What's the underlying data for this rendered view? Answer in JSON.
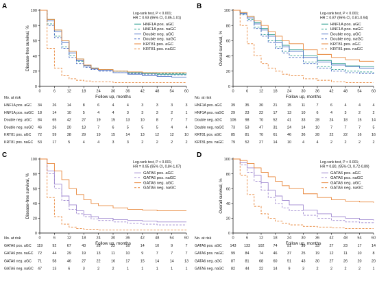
{
  "chart_data": [
    {
      "panel": "A",
      "type": "line",
      "ylabel": "Disease-free survival, %",
      "xlabel": "Follow up, months",
      "ylim": [
        0,
        100
      ],
      "xlim": [
        0,
        60
      ],
      "xticks": [
        0,
        6,
        12,
        18,
        24,
        30,
        36,
        42,
        48,
        54,
        60
      ],
      "yticks": [
        0,
        20,
        40,
        60,
        80,
        100
      ],
      "annotation": [
        "Log-rank test, P < 0.001;",
        "HR = 0.93 (95% CI, 0.85-1.01)"
      ],
      "legend": "top-right",
      "risk_title": "No. at risk",
      "series": [
        {
          "name": "HNF1A pos. aGC",
          "color": "#2e9e8f",
          "dash": "solid",
          "x": [
            0,
            3,
            6,
            9,
            12,
            15,
            18,
            21,
            24,
            30,
            36,
            42,
            48,
            54,
            60
          ],
          "y": [
            100,
            88,
            74,
            60,
            46,
            36,
            28,
            24,
            22,
            20,
            18,
            17,
            16,
            16,
            16
          ],
          "risk": [
            34,
            26,
            14,
            8,
            6,
            4,
            4,
            3,
            3,
            3,
            3
          ]
        },
        {
          "name": "HNF1A pos. naGC",
          "color": "#2e9e8f",
          "dash": "dash",
          "x": [
            0,
            3,
            6,
            9,
            12,
            15,
            18,
            21,
            24,
            30,
            36,
            42,
            48,
            54,
            60
          ],
          "y": [
            100,
            82,
            66,
            52,
            40,
            33,
            27,
            24,
            22,
            20,
            18,
            18,
            17,
            17,
            17
          ],
          "risk": [
            18,
            14,
            10,
            5,
            4,
            4,
            3,
            3,
            3,
            2,
            1
          ]
        },
        {
          "name": "Double neg. aGC",
          "color": "#4a6fc4",
          "dash": "solid",
          "x": [
            0,
            3,
            6,
            9,
            12,
            15,
            18,
            21,
            24,
            30,
            36,
            42,
            48,
            54,
            60
          ],
          "y": [
            100,
            86,
            72,
            58,
            44,
            34,
            27,
            23,
            21,
            18,
            16,
            14,
            13,
            12,
            12
          ],
          "risk": [
            84,
            65,
            42,
            27,
            19,
            15,
            13,
            10,
            8,
            7,
            7
          ]
        },
        {
          "name": "Double neg. naGC",
          "color": "#4a6fc4",
          "dash": "dash",
          "x": [
            0,
            3,
            6,
            9,
            12,
            15,
            18,
            21,
            24,
            30,
            36,
            42,
            48,
            54,
            60
          ],
          "y": [
            100,
            80,
            64,
            50,
            38,
            30,
            25,
            22,
            20,
            18,
            17,
            16,
            15,
            15,
            15
          ],
          "risk": [
            46,
            26,
            20,
            13,
            7,
            6,
            5,
            5,
            5,
            4,
            4
          ]
        },
        {
          "name": "KRT81 pos. aGC",
          "color": "#e8863a",
          "dash": "solid",
          "x": [
            0,
            3,
            6,
            9,
            12,
            15,
            18,
            21,
            24,
            30,
            36,
            42,
            48,
            54,
            60
          ],
          "y": [
            100,
            88,
            74,
            60,
            46,
            36,
            28,
            24,
            22,
            20,
            19,
            18,
            18,
            18,
            18
          ],
          "risk": [
            72,
            59,
            38,
            29,
            19,
            15,
            14,
            13,
            12,
            12,
            10
          ]
        },
        {
          "name": "KRT81 pos. naGC",
          "color": "#e8863a",
          "dash": "dash",
          "x": [
            0,
            3,
            6,
            9,
            12,
            15,
            18,
            21,
            24,
            30,
            36,
            42,
            48,
            54,
            60
          ],
          "y": [
            100,
            50,
            24,
            14,
            10,
            8,
            7,
            6,
            6,
            5,
            5,
            5,
            5,
            5,
            5
          ],
          "risk": [
            53,
            17,
            5,
            4,
            4,
            3,
            3,
            2,
            2,
            2,
            2
          ]
        }
      ]
    },
    {
      "panel": "B",
      "type": "line",
      "ylabel": "Overall survival, %",
      "xlabel": "Follow up, months",
      "ylim": [
        0,
        100
      ],
      "xlim": [
        0,
        60
      ],
      "xticks": [
        0,
        6,
        12,
        18,
        24,
        30,
        36,
        42,
        48,
        54,
        60
      ],
      "yticks": [
        0,
        20,
        40,
        60,
        80,
        100
      ],
      "annotation": [
        "Log-rank test, P < 0.001;",
        "HR = 0.87 (95% CI, 0.81-0.94)"
      ],
      "legend": "top-right",
      "risk_title": "No. at risk",
      "series": [
        {
          "name": "HNF1A pos. aGC",
          "color": "#2e9e8f",
          "dash": "solid",
          "x": [
            0,
            3,
            6,
            9,
            12,
            15,
            18,
            21,
            24,
            30,
            36,
            42,
            48,
            54,
            60
          ],
          "y": [
            100,
            97,
            92,
            84,
            76,
            68,
            60,
            54,
            48,
            40,
            34,
            30,
            27,
            26,
            25
          ],
          "risk": [
            39,
            35,
            30,
            21,
            15,
            11,
            7,
            6,
            4,
            4,
            4
          ]
        },
        {
          "name": "HNF1A pos. naGC",
          "color": "#2e9e8f",
          "dash": "dash",
          "x": [
            0,
            3,
            6,
            9,
            12,
            15,
            18,
            21,
            24,
            30,
            36,
            42,
            48,
            54,
            60
          ],
          "y": [
            100,
            95,
            88,
            78,
            68,
            60,
            52,
            46,
            40,
            32,
            26,
            22,
            20,
            19,
            18
          ],
          "risk": [
            29,
            23,
            22,
            17,
            13,
            10,
            6,
            4,
            3,
            2,
            2
          ]
        },
        {
          "name": "Double neg. aGC",
          "color": "#4a6fc4",
          "dash": "solid",
          "x": [
            0,
            3,
            6,
            9,
            12,
            15,
            18,
            21,
            24,
            30,
            36,
            42,
            48,
            54,
            60
          ],
          "y": [
            100,
            96,
            90,
            82,
            74,
            66,
            58,
            52,
            46,
            38,
            32,
            28,
            26,
            24,
            23
          ],
          "risk": [
            106,
            98,
            70,
            52,
            41,
            33,
            28,
            24,
            18,
            15,
            14
          ]
        },
        {
          "name": "Double neg. naGC",
          "color": "#4a6fc4",
          "dash": "dash",
          "x": [
            0,
            3,
            6,
            9,
            12,
            15,
            18,
            21,
            24,
            30,
            36,
            42,
            48,
            54,
            60
          ],
          "y": [
            100,
            94,
            86,
            76,
            66,
            58,
            50,
            44,
            38,
            30,
            24,
            20,
            18,
            17,
            16
          ],
          "risk": [
            73,
            53,
            47,
            31,
            24,
            14,
            10,
            7,
            7,
            7,
            5
          ]
        },
        {
          "name": "KRT81 pos. aGC",
          "color": "#e8863a",
          "dash": "solid",
          "x": [
            0,
            3,
            6,
            9,
            12,
            15,
            18,
            21,
            24,
            30,
            36,
            42,
            48,
            54,
            60
          ],
          "y": [
            100,
            97,
            92,
            86,
            80,
            72,
            66,
            60,
            56,
            48,
            42,
            38,
            35,
            33,
            32
          ],
          "risk": [
            85,
            81,
            70,
            61,
            46,
            36,
            28,
            22,
            22,
            16,
            16
          ]
        },
        {
          "name": "KRT81 pos. naGC",
          "color": "#e8863a",
          "dash": "dash",
          "x": [
            0,
            3,
            6,
            9,
            12,
            15,
            18,
            21,
            24,
            30,
            36,
            42,
            48,
            54,
            60
          ],
          "y": [
            100,
            80,
            56,
            40,
            30,
            24,
            20,
            16,
            14,
            10,
            8,
            6,
            5,
            5,
            5
          ],
          "risk": [
            79,
            52,
            27,
            14,
            10,
            4,
            4,
            2,
            2,
            2,
            2
          ]
        }
      ]
    },
    {
      "panel": "C",
      "type": "line",
      "ylabel": "Disease-free survival, %",
      "xlabel": "Follow up, months",
      "ylim": [
        0,
        100
      ],
      "xlim": [
        0,
        60
      ],
      "xticks": [
        0,
        6,
        12,
        18,
        24,
        30,
        36,
        42,
        48,
        54,
        60
      ],
      "yticks": [
        0,
        20,
        40,
        60,
        80,
        100
      ],
      "annotation": [
        "Log-rank test, P < 0.001;",
        "HR = 0.95 (95% CI, 0.84-1.07)"
      ],
      "legend": "top-right",
      "risk_title": "No. at risk",
      "series": [
        {
          "name": "GATA6 pos. aGC",
          "color": "#a08ad0",
          "dash": "solid",
          "x": [
            0,
            3,
            6,
            9,
            12,
            15,
            18,
            21,
            24,
            30,
            36,
            42,
            48,
            54,
            60
          ],
          "y": [
            100,
            84,
            66,
            50,
            38,
            30,
            25,
            22,
            20,
            18,
            17,
            16,
            15,
            15,
            15
          ],
          "risk": [
            119,
            92,
            67,
            43,
            28,
            22,
            16,
            14,
            10,
            9,
            7
          ]
        },
        {
          "name": "GATA6 pos. naGC",
          "color": "#a08ad0",
          "dash": "dash",
          "x": [
            0,
            3,
            6,
            9,
            12,
            15,
            18,
            21,
            24,
            30,
            36,
            42,
            48,
            54,
            60
          ],
          "y": [
            100,
            80,
            60,
            44,
            32,
            26,
            22,
            19,
            17,
            15,
            13,
            12,
            11,
            11,
            11
          ],
          "risk": [
            72,
            44,
            29,
            19,
            13,
            11,
            10,
            9,
            7,
            7,
            7
          ]
        },
        {
          "name": "GATA6 neg. aGC",
          "color": "#e8863a",
          "dash": "solid",
          "x": [
            0,
            3,
            6,
            9,
            12,
            15,
            18,
            21,
            24,
            30,
            36,
            42,
            48,
            54,
            60
          ],
          "y": [
            100,
            94,
            84,
            72,
            60,
            52,
            45,
            40,
            37,
            34,
            32,
            31,
            30,
            30,
            30
          ],
          "risk": [
            71,
            58,
            46,
            27,
            22,
            16,
            17,
            15,
            14,
            14,
            13
          ]
        },
        {
          "name": "GATA6 neg. naGC",
          "color": "#e8863a",
          "dash": "dash",
          "x": [
            0,
            3,
            6,
            9,
            12,
            15,
            18,
            21,
            24,
            30,
            36,
            42,
            48,
            54,
            60
          ],
          "y": [
            100,
            48,
            22,
            12,
            8,
            6,
            5,
            5,
            4,
            4,
            4,
            4,
            4,
            4,
            4
          ],
          "risk": [
            47,
            13,
            6,
            3,
            2,
            2,
            1,
            1,
            1,
            1,
            1
          ]
        }
      ]
    },
    {
      "panel": "D",
      "type": "line",
      "ylabel": "Overall survival, %",
      "xlabel": "Follow up, months",
      "ylim": [
        0,
        100
      ],
      "xlim": [
        0,
        60
      ],
      "xticks": [
        0,
        6,
        12,
        18,
        24,
        30,
        36,
        42,
        48,
        54,
        60
      ],
      "yticks": [
        0,
        20,
        40,
        60,
        80,
        100
      ],
      "annotation": [
        "Log-rank test, P < 0.001;",
        "HR = 0.80, (95% CI, 0.72-0.89)"
      ],
      "legend": "top-right",
      "risk_title": "No. at risk",
      "series": [
        {
          "name": "GATA6 pos. aGC",
          "color": "#a08ad0",
          "dash": "solid",
          "x": [
            0,
            3,
            6,
            9,
            12,
            15,
            18,
            21,
            24,
            30,
            36,
            42,
            48,
            54,
            60
          ],
          "y": [
            100,
            95,
            88,
            78,
            68,
            58,
            50,
            44,
            38,
            31,
            26,
            22,
            20,
            18,
            17
          ],
          "risk": [
            143,
            133,
            102,
            74,
            51,
            39,
            33,
            27,
            23,
            17,
            14
          ]
        },
        {
          "name": "GATA6 pos. naGC",
          "color": "#a08ad0",
          "dash": "dash",
          "x": [
            0,
            3,
            6,
            9,
            12,
            15,
            18,
            21,
            24,
            30,
            36,
            42,
            48,
            54,
            60
          ],
          "y": [
            100,
            92,
            82,
            70,
            58,
            48,
            40,
            34,
            30,
            24,
            20,
            17,
            15,
            14,
            13
          ],
          "risk": [
            99,
            84,
            74,
            46,
            37,
            25,
            19,
            12,
            11,
            10,
            8
          ]
        },
        {
          "name": "GATA6 neg. aGC",
          "color": "#e8863a",
          "dash": "solid",
          "x": [
            0,
            3,
            6,
            9,
            12,
            15,
            18,
            21,
            24,
            30,
            36,
            42,
            48,
            54,
            60
          ],
          "y": [
            100,
            98,
            94,
            88,
            82,
            76,
            70,
            64,
            60,
            53,
            48,
            45,
            43,
            42,
            41
          ],
          "risk": [
            87,
            81,
            68,
            60,
            51,
            43,
            30,
            27,
            26,
            20,
            20
          ]
        },
        {
          "name": "GATA6 neg. naGC",
          "color": "#e8863a",
          "dash": "dash",
          "x": [
            0,
            3,
            6,
            9,
            12,
            15,
            18,
            21,
            24,
            30,
            36,
            42,
            48,
            54,
            60
          ],
          "y": [
            100,
            78,
            52,
            36,
            26,
            20,
            16,
            13,
            11,
            9,
            8,
            7,
            6,
            6,
            6
          ],
          "risk": [
            82,
            44,
            22,
            14,
            9,
            3,
            2,
            2,
            2,
            2,
            1
          ]
        }
      ]
    }
  ]
}
